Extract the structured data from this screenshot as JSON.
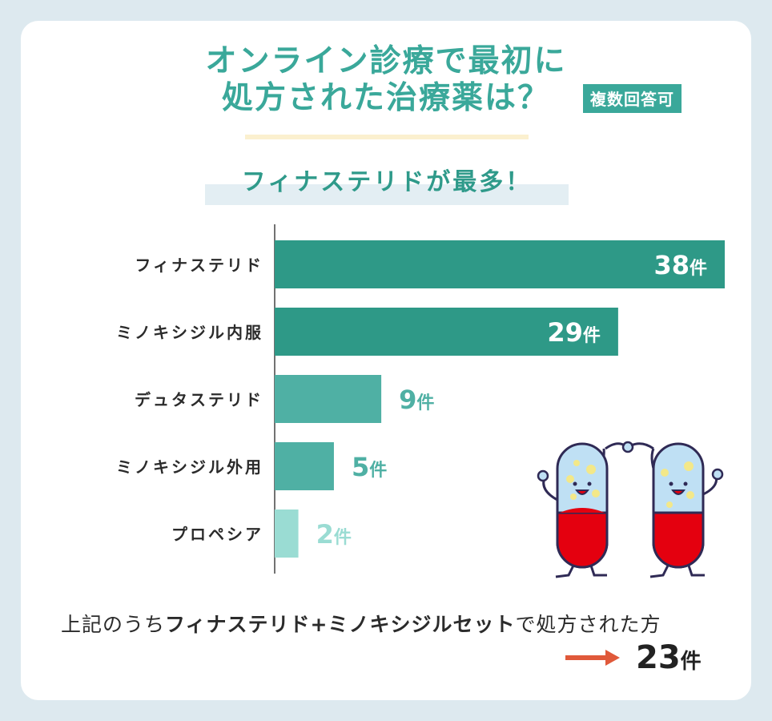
{
  "header": {
    "title_line1": "オンライン診療で最初に",
    "title_line2": "処方された治療薬は？",
    "tag": "複数回答可",
    "subtitle": "フィナステリドが最多！"
  },
  "colors": {
    "background": "#dde9ef",
    "accent": "#3aa89a",
    "bar_dark": "#2e9987",
    "bar_mid": "#4fb0a4",
    "bar_light": "#9adcd3",
    "arrow": "#e0593a"
  },
  "chart_data": {
    "type": "bar",
    "orientation": "horizontal",
    "categories": [
      "フィナステリド",
      "ミノキシジル内服",
      "デュタステリド",
      "ミノキシジル外用",
      "プロペシア"
    ],
    "values": [
      38,
      29,
      9,
      5,
      2
    ],
    "value_labels": [
      "38",
      "29",
      "9",
      "5",
      "2"
    ],
    "unit": "件",
    "xlim": [
      0,
      38
    ]
  },
  "footer": {
    "text_before": "上記のうち",
    "text_bold": "フィナステリド+ミノキシジルセット",
    "text_after": "で処方された方",
    "result_value": "23",
    "result_unit": "件"
  },
  "illustration": {
    "icon": "pill-mascots-icon"
  }
}
